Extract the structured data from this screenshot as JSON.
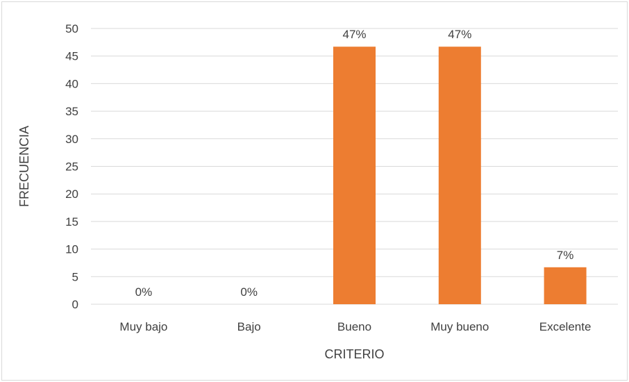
{
  "chart_data": {
    "type": "bar",
    "categories": [
      "Muy bajo",
      "Bajo",
      "Bueno",
      "Muy bueno",
      "Excelente"
    ],
    "values": [
      0,
      0,
      46.7,
      46.7,
      6.7
    ],
    "data_labels": [
      "0%",
      "0%",
      "47%",
      "47%",
      "7%"
    ],
    "title": "",
    "xlabel": "CRITERIO",
    "ylabel": "FRECUENCIA",
    "ylim": [
      0,
      50
    ],
    "yticks": [
      "0",
      "5",
      "10",
      "15",
      "20",
      "25",
      "30",
      "35",
      "40",
      "45",
      "50"
    ],
    "grid": true,
    "legend": "none",
    "bar_color": "#ED7D31",
    "grid_color": "#D9D9D9",
    "text_color": "#404040"
  }
}
